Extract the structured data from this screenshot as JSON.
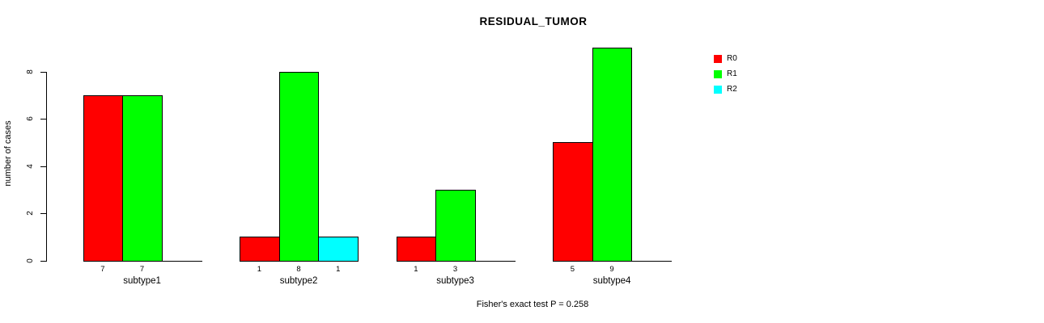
{
  "chart_data": {
    "type": "bar",
    "title": "RESIDUAL_TUMOR",
    "xlabel": "",
    "ylabel": "number of cases",
    "categories": [
      "subtype1",
      "subtype2",
      "subtype3",
      "subtype4"
    ],
    "series": [
      {
        "name": "R0",
        "color": "#FF0000",
        "values": [
          7,
          1,
          1,
          5
        ]
      },
      {
        "name": "R1",
        "color": "#00FF00",
        "values": [
          7,
          8,
          3,
          9
        ]
      },
      {
        "name": "R2",
        "color": "#00FFFF",
        "values": [
          0,
          1,
          0,
          0
        ]
      }
    ],
    "bar_value_labels_shown": true,
    "yticks": [
      0,
      2,
      4,
      6,
      8
    ],
    "ylim": [
      0,
      9.4
    ],
    "grid": false,
    "legend_position": "top-right",
    "annotation": "Fisher's exact test P = 0.258"
  }
}
